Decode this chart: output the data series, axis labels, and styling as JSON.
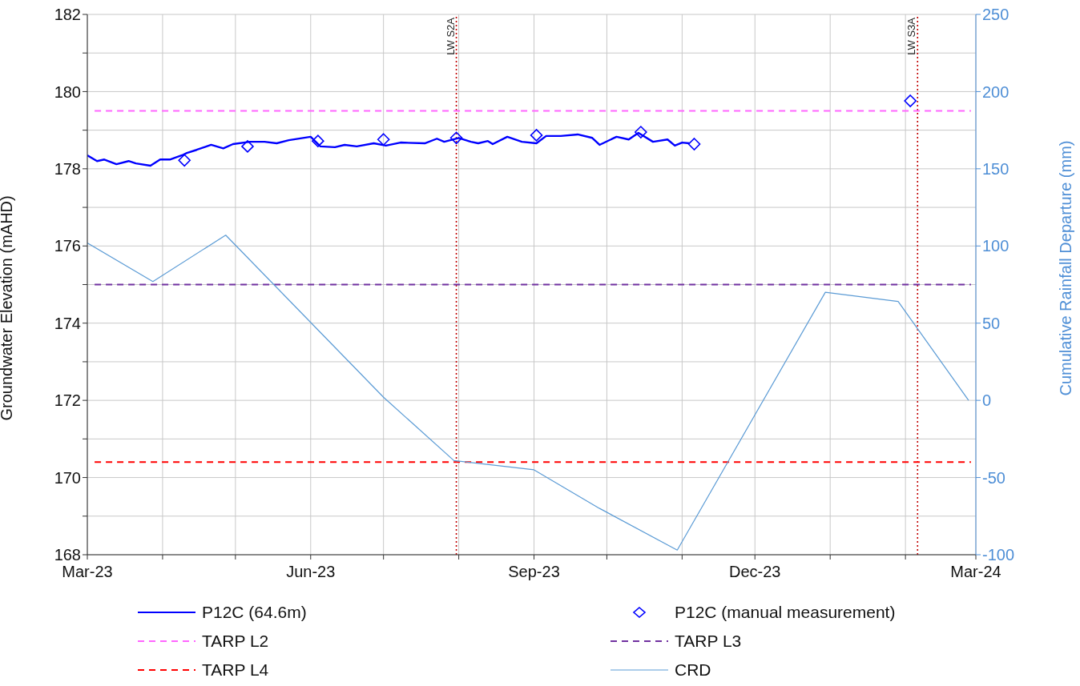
{
  "chart_data": {
    "type": "line",
    "xlabel": null,
    "ylabel": "Groundwater Elevation (mAHD)",
    "y2label": "Cumulative Rainfall Departure (mm)",
    "xlim": [
      "2023-03-01",
      "2024-03-01"
    ],
    "xticks": [
      {
        "value": "2023-03-01",
        "label": "Mar-23"
      },
      {
        "value": "2023-04-01",
        "label": null
      },
      {
        "value": "2023-05-01",
        "label": null
      },
      {
        "value": "2023-06-01",
        "label": "Jun-23"
      },
      {
        "value": "2023-07-01",
        "label": null
      },
      {
        "value": "2023-08-01",
        "label": null
      },
      {
        "value": "2023-09-01",
        "label": "Sep-23"
      },
      {
        "value": "2023-10-01",
        "label": null
      },
      {
        "value": "2023-11-01",
        "label": null
      },
      {
        "value": "2023-12-01",
        "label": "Dec-23"
      },
      {
        "value": "2024-01-01",
        "label": null
      },
      {
        "value": "2024-02-01",
        "label": null
      },
      {
        "value": "2024-03-01",
        "label": "Mar-24"
      }
    ],
    "ylim": [
      168,
      182
    ],
    "yticks": [
      168,
      {
        "value": 169,
        "label": null
      },
      170,
      {
        "value": 171,
        "label": null
      },
      172,
      {
        "value": 173,
        "label": null
      },
      174,
      {
        "value": 175,
        "label": null
      },
      176,
      {
        "value": 177,
        "label": null
      },
      178,
      {
        "value": 179,
        "label": null
      },
      180,
      {
        "value": 181,
        "label": null
      },
      182
    ],
    "y2lim": [
      -100,
      250
    ],
    "y2ticks": [
      -100,
      -50,
      0,
      50,
      100,
      150,
      200,
      250
    ],
    "grid": true,
    "legend": "bottom",
    "series": [
      {
        "name": "P12C (64.6m)",
        "color": "#0000ff",
        "marker": "none",
        "line_style": "solid",
        "x": [
          "2023-03-01",
          "2023-03-05",
          "2023-03-08",
          "2023-03-13",
          "2023-03-18",
          "2023-03-21",
          "2023-03-27",
          "2023-03-31",
          "2023-04-04",
          "2023-04-09",
          "2023-04-11",
          "2023-04-15",
          "2023-04-21",
          "2023-04-26",
          "2023-04-30",
          "2023-05-07",
          "2023-05-13",
          "2023-05-18",
          "2023-05-23",
          "2023-06-01",
          "2023-06-05",
          "2023-06-11",
          "2023-06-15",
          "2023-06-20",
          "2023-06-27",
          "2023-07-02",
          "2023-07-08",
          "2023-07-18",
          "2023-07-23",
          "2023-07-26",
          "2023-08-01",
          "2023-08-06",
          "2023-08-09",
          "2023-08-13",
          "2023-08-15",
          "2023-08-21",
          "2023-08-27",
          "2023-09-02",
          "2023-09-06",
          "2023-09-12",
          "2023-09-19",
          "2023-09-25",
          "2023-09-28",
          "2023-10-05",
          "2023-10-10",
          "2023-10-14",
          "2023-10-20",
          "2023-10-26",
          "2023-10-29",
          "2023-11-01",
          "2023-11-04"
        ],
        "values": [
          178.35,
          178.2,
          178.24,
          178.12,
          178.2,
          178.14,
          178.08,
          178.24,
          178.24,
          178.35,
          178.41,
          178.49,
          178.62,
          178.53,
          178.64,
          178.7,
          178.7,
          178.66,
          178.74,
          178.83,
          178.58,
          178.56,
          178.62,
          178.58,
          178.66,
          178.6,
          178.68,
          178.66,
          178.78,
          178.7,
          178.8,
          178.7,
          178.66,
          178.72,
          178.64,
          178.83,
          178.7,
          178.66,
          178.85,
          178.85,
          178.89,
          178.8,
          178.62,
          178.83,
          178.76,
          178.93,
          178.7,
          178.76,
          178.6,
          178.68,
          178.66
        ]
      },
      {
        "name": "P12C (manual measurement)",
        "type": "scatter",
        "color": "#0000ff",
        "marker": "diamond",
        "x": [
          "2023-04-10",
          "2023-05-06",
          "2023-06-04",
          "2023-07-01",
          "2023-07-31",
          "2023-09-02",
          "2023-10-15",
          "2023-11-06",
          "2024-02-03"
        ],
        "values": [
          178.22,
          178.58,
          178.72,
          178.76,
          178.8,
          178.87,
          178.95,
          178.64,
          179.76
        ]
      },
      {
        "name": "TARP L2",
        "color": "#ff66ff",
        "marker": "none",
        "line_style": "dashed",
        "x": [
          "2023-03-04",
          "2024-02-28"
        ],
        "values": [
          179.5,
          179.5
        ]
      },
      {
        "name": "TARP L3",
        "color": "#7030a0",
        "marker": "none",
        "line_style": "dashed",
        "x": [
          "2023-03-04",
          "2024-02-28"
        ],
        "values": [
          175,
          175
        ]
      },
      {
        "name": "TARP L4",
        "color": "#ff0000",
        "marker": "none",
        "line_style": "dashed",
        "x": [
          "2023-03-04",
          "2024-02-28"
        ],
        "values": [
          170.4,
          170.4
        ]
      },
      {
        "name": "CRD",
        "color": "#5b9bd5",
        "marker": "none",
        "line_style": "solid",
        "axis": "y2",
        "x": [
          "2023-03-01",
          "2023-03-28",
          "2023-04-27",
          "2023-07-01",
          "2023-07-30",
          "2023-09-01",
          "2023-09-28",
          "2023-10-30",
          "2023-12-30",
          "2024-01-29",
          "2024-02-27"
        ],
        "values": [
          102,
          77,
          107,
          2,
          -39,
          -45,
          -70,
          -97,
          70,
          64,
          0
        ]
      }
    ],
    "ref_lines": [
      {
        "axis": "x",
        "value": "2023-07-31",
        "label": "LW S2A",
        "color": "#c00000",
        "line_style": "dotted"
      },
      {
        "axis": "x",
        "value": "2024-02-06",
        "label": "LW S3A",
        "color": "#c00000",
        "line_style": "dotted"
      }
    ]
  }
}
